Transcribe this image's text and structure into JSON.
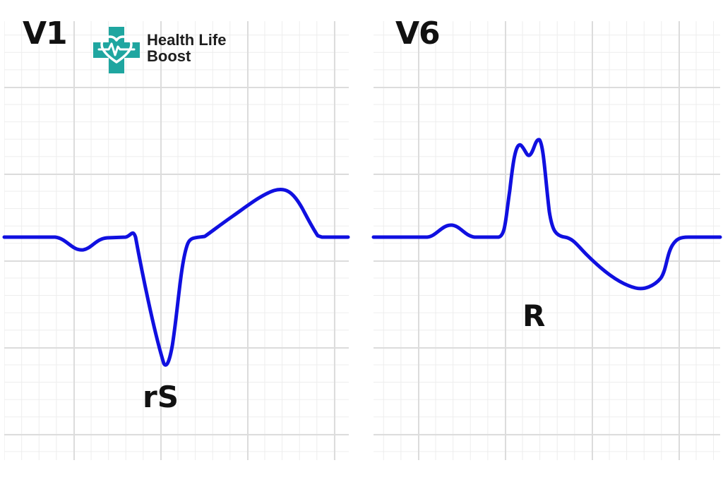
{
  "logo": {
    "name_line1": "Health Life",
    "name_line2": "Boost",
    "icon": "medical-cross-heart-icon",
    "color": "#1fa6a0"
  },
  "panels": [
    {
      "lead": "V1",
      "complex_label": "rS"
    },
    {
      "lead": "V6",
      "complex_label": "R"
    }
  ],
  "colors": {
    "trace": "#1010e0",
    "grid_major": "#dcdcdc",
    "grid_minor": "#ededed"
  }
}
